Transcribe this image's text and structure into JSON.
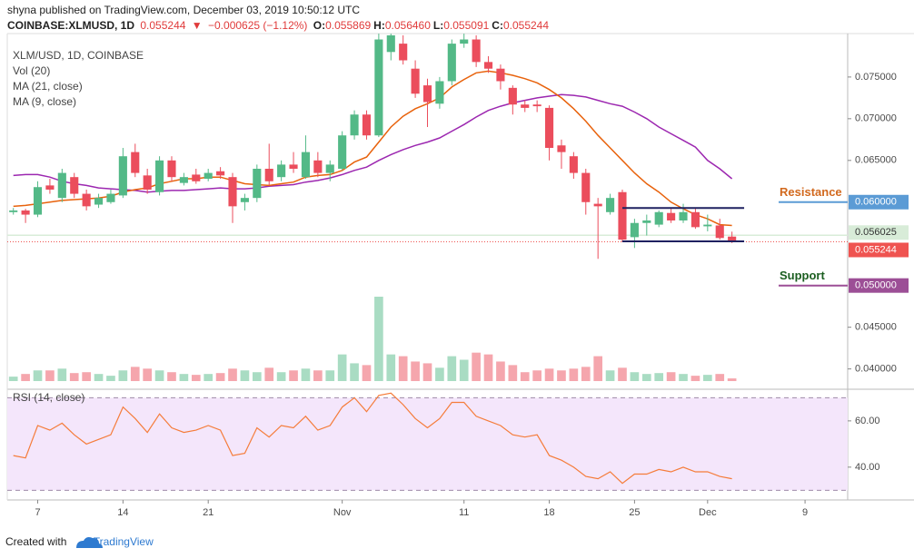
{
  "header": {
    "published": "shyna published on TradingView.com, December 03, 2019 10:50:12 UTC",
    "symbol": "COINBASE:XLMUSD, 1D",
    "last": "0.055244",
    "arrow": "▼",
    "change": "−0.000625 (−1.12%)",
    "ohlc": [
      {
        "label": "O:",
        "value": "0.055869"
      },
      {
        "label": "H:",
        "value": "0.056460"
      },
      {
        "label": "L:",
        "value": "0.055091"
      },
      {
        "label": "C:",
        "value": "0.055244"
      }
    ]
  },
  "legend": [
    "XLM/USD, 1D, COINBASE",
    "Vol (20)",
    "MA (21, close)",
    "MA (9, close)"
  ],
  "footer": {
    "created": "Created with",
    "brand": "TradingView"
  },
  "chart_data": [
    {
      "type": "candlestick",
      "up_color": "#53b987",
      "down_color": "#eb4d5c",
      "xlim": [
        -0.5,
        68.5
      ],
      "xticks": [
        {
          "value": 2,
          "label": "7"
        },
        {
          "value": 9,
          "label": "14"
        },
        {
          "value": 16,
          "label": "21"
        },
        {
          "value": 27,
          "label": "Nov"
        },
        {
          "value": 37,
          "label": "11"
        },
        {
          "value": 44,
          "label": "18"
        },
        {
          "value": 51,
          "label": "25"
        },
        {
          "value": 57,
          "label": "Dec"
        },
        {
          "value": 65,
          "label": "9"
        }
      ],
      "ylim": [
        0.038,
        0.0801
      ],
      "yticks": [
        {
          "value": 0.075,
          "label": "0.075000"
        },
        {
          "value": 0.07,
          "label": "0.070000"
        },
        {
          "value": 0.065,
          "label": "0.065000"
        },
        {
          "value": 0.045,
          "label": "0.045000"
        },
        {
          "value": 0.04,
          "label": "0.040000"
        }
      ],
      "open": [
        0.0588,
        0.059,
        0.0585,
        0.062,
        0.0605,
        0.063,
        0.061,
        0.0597,
        0.06,
        0.0608,
        0.066,
        0.0632,
        0.0612,
        0.065,
        0.0623,
        0.0633,
        0.0628,
        0.0637,
        0.063,
        0.06,
        0.0605,
        0.064,
        0.063,
        0.0645,
        0.063,
        0.065,
        0.0635,
        0.064,
        0.068,
        0.0705,
        0.068,
        0.078,
        0.079,
        0.076,
        0.074,
        0.0718,
        0.0745,
        0.079,
        0.0795,
        0.0768,
        0.076,
        0.0737,
        0.0717,
        0.0717,
        0.0713,
        0.0668,
        0.0655,
        0.0635,
        0.0598,
        0.0588,
        0.0612,
        0.0558,
        0.0575,
        0.0573,
        0.0587,
        0.0578,
        0.0588,
        0.0571,
        0.0572,
        0.055869
      ],
      "high": [
        0.0593,
        0.0592,
        0.0625,
        0.0628,
        0.064,
        0.0635,
        0.0615,
        0.061,
        0.0615,
        0.0665,
        0.067,
        0.064,
        0.0655,
        0.0655,
        0.0635,
        0.064,
        0.064,
        0.0642,
        0.0635,
        0.061,
        0.0645,
        0.067,
        0.065,
        0.066,
        0.068,
        0.066,
        0.065,
        0.0685,
        0.071,
        0.071,
        0.0802,
        0.0802,
        0.08,
        0.077,
        0.0748,
        0.075,
        0.0795,
        0.0802,
        0.08,
        0.0775,
        0.0765,
        0.074,
        0.0722,
        0.0722,
        0.0716,
        0.0675,
        0.066,
        0.064,
        0.0605,
        0.061,
        0.0615,
        0.058,
        0.0585,
        0.059,
        0.0592,
        0.0598,
        0.0592,
        0.0585,
        0.058,
        0.05646
      ],
      "low": [
        0.0585,
        0.0575,
        0.0582,
        0.061,
        0.06,
        0.0605,
        0.059,
        0.0593,
        0.0598,
        0.0605,
        0.063,
        0.061,
        0.0608,
        0.0625,
        0.062,
        0.0622,
        0.0625,
        0.0628,
        0.0575,
        0.059,
        0.06,
        0.062,
        0.0625,
        0.0635,
        0.0628,
        0.063,
        0.0625,
        0.0638,
        0.0675,
        0.0675,
        0.0678,
        0.077,
        0.0765,
        0.0725,
        0.069,
        0.0712,
        0.074,
        0.0785,
        0.0762,
        0.0755,
        0.0735,
        0.0705,
        0.0708,
        0.0708,
        0.065,
        0.064,
        0.0628,
        0.0585,
        0.0532,
        0.0585,
        0.0552,
        0.0545,
        0.056,
        0.057,
        0.0575,
        0.0575,
        0.0568,
        0.0565,
        0.0555,
        0.055091
      ],
      "close": [
        0.059,
        0.0585,
        0.0618,
        0.0615,
        0.0635,
        0.061,
        0.0595,
        0.0605,
        0.061,
        0.0655,
        0.0635,
        0.0615,
        0.065,
        0.063,
        0.063,
        0.0625,
        0.0635,
        0.0632,
        0.0595,
        0.0605,
        0.064,
        0.0625,
        0.0645,
        0.064,
        0.066,
        0.0635,
        0.0645,
        0.068,
        0.0705,
        0.068,
        0.0795,
        0.08,
        0.077,
        0.073,
        0.072,
        0.0745,
        0.079,
        0.0795,
        0.0768,
        0.076,
        0.0745,
        0.0717,
        0.0713,
        0.0715,
        0.0665,
        0.066,
        0.0635,
        0.06,
        0.0595,
        0.0605,
        0.0555,
        0.0575,
        0.0578,
        0.0588,
        0.0578,
        0.0588,
        0.057,
        0.0573,
        0.0557,
        0.055244
      ],
      "volume": {
        "name": "Vol (20)",
        "values": [
          5,
          8,
          12,
          12,
          14,
          9,
          10,
          8,
          6,
          12,
          16,
          14,
          12,
          10,
          8,
          7,
          8,
          9,
          14,
          12,
          10,
          15,
          10,
          12,
          14,
          12,
          12,
          30,
          20,
          18,
          95,
          30,
          28,
          22,
          20,
          15,
          28,
          24,
          32,
          30,
          22,
          18,
          10,
          12,
          14,
          12,
          14,
          16,
          28,
          12,
          15,
          10,
          8,
          9,
          10,
          8,
          6,
          7,
          8,
          3
        ]
      },
      "series": [
        {
          "name": "MA (21, close)",
          "color": "#9c27b0",
          "values": [
            0.0632,
            0.0633,
            0.0633,
            0.063,
            0.0625,
            0.0622,
            0.062,
            0.0617,
            0.0616,
            0.0615,
            0.0614,
            0.0612,
            0.0613,
            0.0614,
            0.0614,
            0.0615,
            0.0616,
            0.0617,
            0.0616,
            0.0616,
            0.0617,
            0.0619,
            0.062,
            0.0621,
            0.0624,
            0.0626,
            0.0629,
            0.0633,
            0.0638,
            0.0642,
            0.065,
            0.0657,
            0.0663,
            0.0668,
            0.0672,
            0.0677,
            0.0685,
            0.0693,
            0.0702,
            0.071,
            0.0715,
            0.0719,
            0.0722,
            0.0725,
            0.0727,
            0.0729,
            0.0728,
            0.0726,
            0.0722,
            0.0718,
            0.0715,
            0.0708,
            0.07,
            0.069,
            0.0682,
            0.0674,
            0.0666,
            0.065,
            0.064,
            0.0628
          ]
        },
        {
          "name": "MA (9, close)",
          "color": "#e8620c",
          "values": [
            0.0595,
            0.0596,
            0.0598,
            0.06,
            0.0602,
            0.0603,
            0.0604,
            0.0605,
            0.0607,
            0.0612,
            0.0615,
            0.0617,
            0.0622,
            0.0625,
            0.0628,
            0.0628,
            0.063,
            0.063,
            0.0626,
            0.0622,
            0.0621,
            0.062,
            0.0622,
            0.0624,
            0.063,
            0.0632,
            0.0633,
            0.0638,
            0.0648,
            0.0654,
            0.0672,
            0.069,
            0.0703,
            0.0712,
            0.0718,
            0.0725,
            0.0738,
            0.0747,
            0.0755,
            0.0757,
            0.0755,
            0.0752,
            0.0748,
            0.0743,
            0.0735,
            0.0725,
            0.0712,
            0.0697,
            0.068,
            0.0665,
            0.065,
            0.0635,
            0.0622,
            0.0612,
            0.06,
            0.0592,
            0.0585,
            0.058,
            0.0573,
            0.0572
          ]
        }
      ],
      "channel": {
        "x": [
          50,
          60
        ],
        "values": [
          0.0593,
          0.0553
        ],
        "color": "#1f2060"
      },
      "levels": [
        {
          "label": "Resistance",
          "value": 0.06,
          "value_label": "0.060000",
          "color": "#5b9bd5",
          "label_color": "#d2691e"
        },
        {
          "label": "Support",
          "value": 0.05,
          "value_label": "0.050000",
          "color": "#9c4f96",
          "label_color": "#1b5e20"
        }
      ],
      "price_lines": [
        {
          "value": 0.056025,
          "label": "0.056025",
          "color": "#d8ecd8",
          "text_color": "#333"
        },
        {
          "value": 0.055244,
          "label": "0.055244",
          "color": "#ef5350",
          "text_color": "#fff"
        }
      ]
    },
    {
      "type": "line",
      "title": "RSI (14, close)",
      "color": "#f57c3a",
      "band": [
        30,
        70
      ],
      "band_color": "#f4e6fb",
      "xlim": [
        -0.5,
        68.5
      ],
      "ylim": [
        27,
        72.5
      ],
      "yticks": [
        {
          "value": 60,
          "label": "60.00"
        },
        {
          "value": 40,
          "label": "40.00"
        }
      ],
      "values": [
        45,
        44,
        58,
        56,
        59,
        54,
        50,
        52,
        54,
        66,
        61,
        55,
        63,
        57,
        55,
        56,
        58,
        56,
        45,
        46,
        57,
        53,
        58,
        57,
        62,
        56,
        58,
        66,
        70,
        64,
        71,
        72,
        67,
        61,
        57,
        61,
        68,
        68,
        62,
        60,
        58,
        54,
        53,
        54,
        45,
        43,
        40,
        36,
        35,
        38,
        33,
        37,
        37,
        39,
        38,
        40,
        38,
        38,
        36,
        35
      ]
    }
  ]
}
